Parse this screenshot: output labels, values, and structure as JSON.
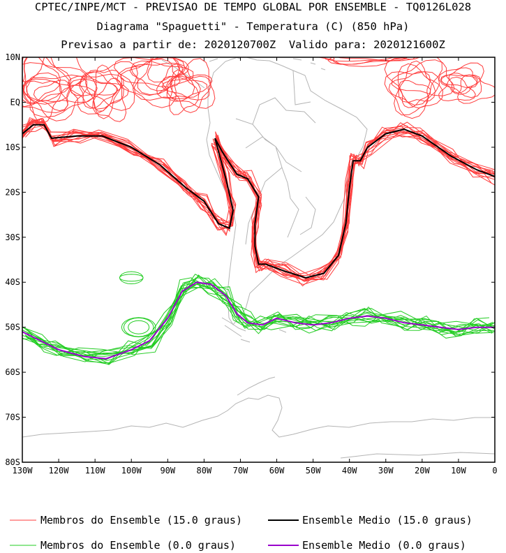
{
  "titles": {
    "line1": "CPTEC/INPE/MCT - PREVISAO DE TEMPO GLOBAL POR ENSEMBLE - TQ0126L028",
    "line2": "Diagrama \"Spaguetti\" - Temperatura (C) (850 hPa)",
    "line3": "Previsao a partir de: 2020120700Z  Valido para: 2020121600Z"
  },
  "axes": {
    "lon_labels": [
      "130W",
      "120W",
      "110W",
      "100W",
      "90W",
      "80W",
      "70W",
      "60W",
      "50W",
      "40W",
      "30W",
      "20W",
      "10W",
      "0"
    ],
    "lat_labels": [
      "10N",
      "EQ",
      "10S",
      "20S",
      "30S",
      "40S",
      "50S",
      "60S",
      "70S",
      "80S"
    ],
    "lon_range": [
      -130,
      0
    ],
    "lat_range": [
      -80,
      10
    ]
  },
  "legend": [
    {
      "label": "Membros do Ensemble (15.0 graus)",
      "color": "#ff3c3c"
    },
    {
      "label": "Ensemble Medio (15.0 graus)",
      "color": "#000000"
    },
    {
      "label": "Membros do Ensemble (0.0 graus)",
      "color": "#22cc22"
    },
    {
      "label": "Ensemble Medio (0.0 graus)",
      "color": "#9900cc"
    }
  ],
  "chart_data": {
    "type": "line",
    "series": [
      {
        "name": "Ensemble Medio (15.0 graus)",
        "color": "#000000",
        "points": [
          [
            -130,
            -7
          ],
          [
            -127,
            -5
          ],
          [
            -124,
            -5
          ],
          [
            -122,
            -8
          ],
          [
            -115,
            -7.5
          ],
          [
            -108,
            -7.5
          ],
          [
            -100,
            -10
          ],
          [
            -92,
            -14
          ],
          [
            -85,
            -19
          ],
          [
            -80,
            -22
          ],
          [
            -76,
            -27
          ],
          [
            -73,
            -28
          ],
          [
            -72,
            -24
          ],
          [
            -74,
            -17
          ],
          [
            -77,
            -8
          ],
          [
            -75,
            -11
          ],
          [
            -71,
            -16
          ],
          [
            -68,
            -17
          ],
          [
            -65,
            -21
          ],
          [
            -66,
            -27
          ],
          [
            -66,
            -32
          ],
          [
            -65,
            -36
          ],
          [
            -63,
            -36
          ],
          [
            -58,
            -37.5
          ],
          [
            -52,
            -39
          ],
          [
            -47,
            -38
          ],
          [
            -43,
            -34
          ],
          [
            -41,
            -27
          ],
          [
            -40,
            -19
          ],
          [
            -39,
            -13
          ],
          [
            -37,
            -13
          ],
          [
            -35,
            -10
          ],
          [
            -30,
            -7
          ],
          [
            -25,
            -6
          ],
          [
            -20,
            -7.5
          ],
          [
            -12,
            -12
          ],
          [
            -5,
            -15
          ],
          [
            0,
            -16.5
          ]
        ]
      },
      {
        "name": "Ensemble Medio (0.0 graus)",
        "color": "#9900cc",
        "points": [
          [
            -130,
            -51
          ],
          [
            -125,
            -53
          ],
          [
            -120,
            -55
          ],
          [
            -113,
            -56.5
          ],
          [
            -107,
            -57
          ],
          [
            -100,
            -55
          ],
          [
            -95,
            -53
          ],
          [
            -90,
            -48
          ],
          [
            -86,
            -42
          ],
          [
            -82,
            -40
          ],
          [
            -78,
            -40.5
          ],
          [
            -74,
            -43
          ],
          [
            -71,
            -47
          ],
          [
            -68,
            -49
          ],
          [
            -64,
            -49.5
          ],
          [
            -60,
            -48
          ],
          [
            -55,
            -49
          ],
          [
            -50,
            -49.5
          ],
          [
            -45,
            -49
          ],
          [
            -40,
            -48
          ],
          [
            -35,
            -47.5
          ],
          [
            -30,
            -48
          ],
          [
            -25,
            -49
          ],
          [
            -20,
            -49.5
          ],
          [
            -15,
            -50
          ],
          [
            -10,
            -50.5
          ],
          [
            -5,
            -50
          ],
          [
            0,
            -50
          ]
        ]
      }
    ],
    "xlim": [
      -130,
      0
    ],
    "ylim": [
      -80,
      10
    ],
    "grid": false,
    "legend_position": "bottom"
  }
}
